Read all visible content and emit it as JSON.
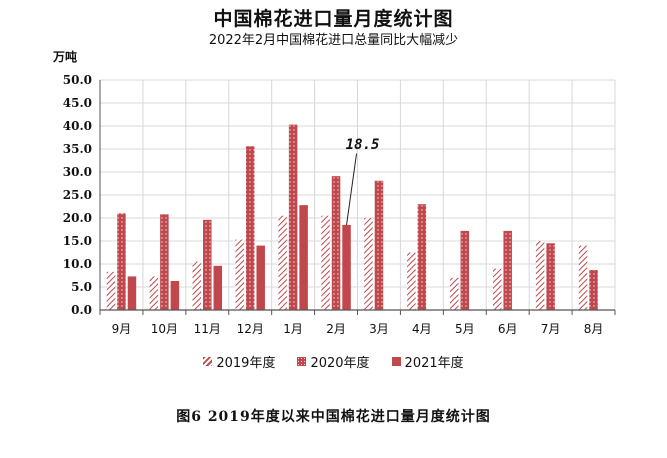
{
  "header": {
    "title": "中国棉花进口量月度统计图",
    "subtitle": "2022年2月中国棉花进口总量同比大幅减少"
  },
  "caption": "图6   2019年度以来中国棉花进口量月度统计图",
  "colors": {
    "s2019": "#d2a6a6",
    "s2020": "#c0484c",
    "s2021": "#c0484c",
    "grid": "#d8d8d8",
    "axis": "#555555"
  },
  "chart_data": {
    "type": "bar",
    "title": "中国棉花进口量月度统计图",
    "subtitle": "2022年2月中国棉花进口总量同比大幅减少",
    "ylabel": "万吨",
    "ylim": [
      0,
      50
    ],
    "ytick_step": 5,
    "ytick_labels": [
      "0.0",
      "5.0",
      "10.0",
      "15.0",
      "20.0",
      "25.0",
      "30.0",
      "35.0",
      "40.0",
      "45.0",
      "50.0"
    ],
    "grid": true,
    "legend_position": "bottom",
    "categories": [
      "9月",
      "10月",
      "11月",
      "12月",
      "1月",
      "2月",
      "3月",
      "4月",
      "5月",
      "6月",
      "7月",
      "8月"
    ],
    "series": [
      {
        "name": "2019年度",
        "pattern": "hatched",
        "values": [
          8.3,
          7.3,
          10.5,
          15.3,
          20.5,
          20.5,
          20.0,
          12.5,
          7.0,
          9.0,
          15.0,
          14.0
        ]
      },
      {
        "name": "2020年度",
        "pattern": "dotted",
        "values": [
          21.0,
          20.8,
          19.6,
          35.6,
          40.3,
          29.1,
          28.1,
          23.0,
          17.2,
          17.2,
          14.5,
          8.7
        ]
      },
      {
        "name": "2021年度",
        "pattern": "solid",
        "values": [
          7.3,
          6.3,
          9.6,
          14.0,
          22.8,
          18.5,
          null,
          null,
          null,
          null,
          null,
          null
        ]
      }
    ],
    "annotations": [
      {
        "text": "18.5",
        "category": "2月",
        "series": "2021年度",
        "value": 18.5
      }
    ]
  }
}
